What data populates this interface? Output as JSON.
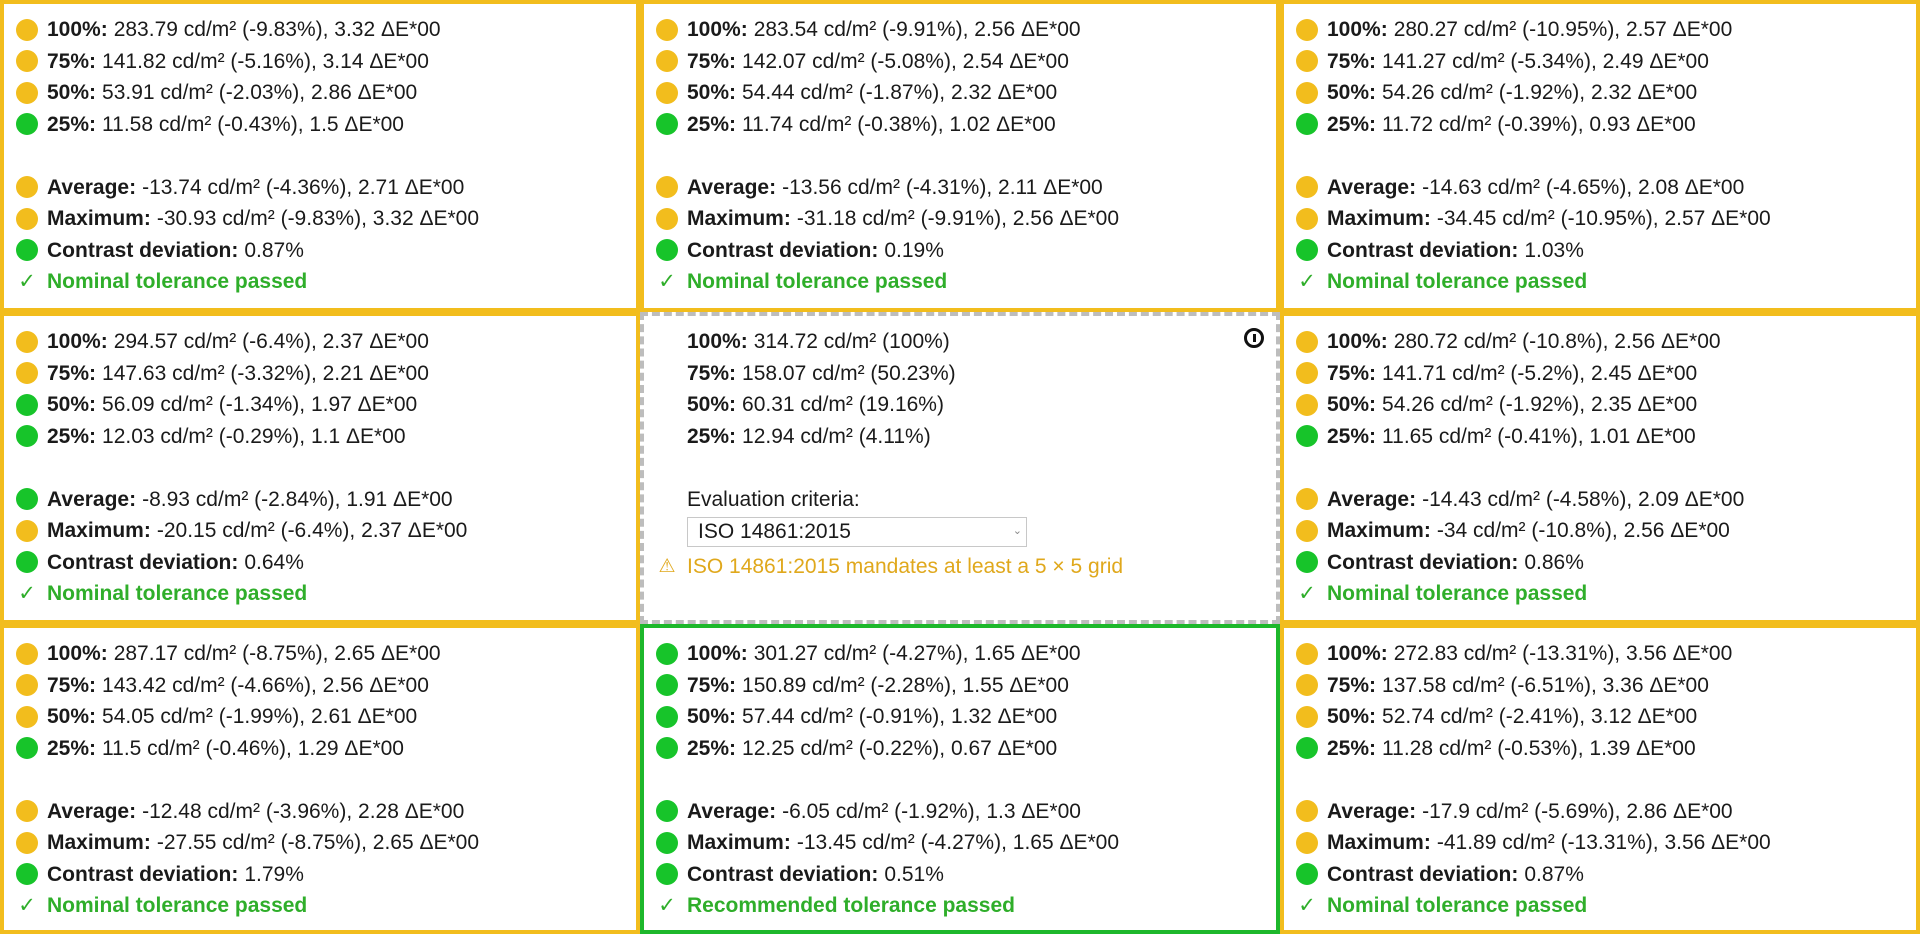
{
  "cells": [
    {
      "rows": [
        {
          "label": "100%:",
          "value": "283.79 cd/m² (-9.83%), 3.32 ΔE*00",
          "status": "yellow"
        },
        {
          "label": "75%:",
          "value": "141.82 cd/m² (-5.16%), 3.14 ΔE*00",
          "status": "yellow"
        },
        {
          "label": "50%:",
          "value": "53.91 cd/m² (-2.03%), 2.86 ΔE*00",
          "status": "yellow"
        },
        {
          "label": "25%:",
          "value": "11.58 cd/m² (-0.43%), 1.5 ΔE*00",
          "status": "green"
        }
      ],
      "summary": [
        {
          "label": "Average:",
          "value": "-13.74 cd/m² (-4.36%), 2.71 ΔE*00",
          "status": "yellow"
        },
        {
          "label": "Maximum:",
          "value": "-30.93 cd/m² (-9.83%), 3.32 ΔE*00",
          "status": "yellow"
        },
        {
          "label": "Contrast deviation:",
          "value": "0.87%",
          "status": "green"
        }
      ],
      "result": "Nominal tolerance passed"
    },
    {
      "rows": [
        {
          "label": "100%:",
          "value": "283.54 cd/m² (-9.91%), 2.56 ΔE*00",
          "status": "yellow"
        },
        {
          "label": "75%:",
          "value": "142.07 cd/m² (-5.08%), 2.54 ΔE*00",
          "status": "yellow"
        },
        {
          "label": "50%:",
          "value": "54.44 cd/m² (-1.87%), 2.32 ΔE*00",
          "status": "yellow"
        },
        {
          "label": "25%:",
          "value": "11.74 cd/m² (-0.38%), 1.02 ΔE*00",
          "status": "green"
        }
      ],
      "summary": [
        {
          "label": "Average:",
          "value": "-13.56 cd/m² (-4.31%), 2.11 ΔE*00",
          "status": "yellow"
        },
        {
          "label": "Maximum:",
          "value": "-31.18 cd/m² (-9.91%), 2.56 ΔE*00",
          "status": "yellow"
        },
        {
          "label": "Contrast deviation:",
          "value": "0.19%",
          "status": "green"
        }
      ],
      "result": "Nominal tolerance passed"
    },
    {
      "rows": [
        {
          "label": "100%:",
          "value": "280.27 cd/m² (-10.95%), 2.57 ΔE*00",
          "status": "yellow"
        },
        {
          "label": "75%:",
          "value": "141.27 cd/m² (-5.34%), 2.49 ΔE*00",
          "status": "yellow"
        },
        {
          "label": "50%:",
          "value": "54.26 cd/m² (-1.92%), 2.32 ΔE*00",
          "status": "yellow"
        },
        {
          "label": "25%:",
          "value": "11.72 cd/m² (-0.39%), 0.93 ΔE*00",
          "status": "green"
        }
      ],
      "summary": [
        {
          "label": "Average:",
          "value": "-14.63 cd/m² (-4.65%), 2.08 ΔE*00",
          "status": "yellow"
        },
        {
          "label": "Maximum:",
          "value": "-34.45 cd/m² (-10.95%), 2.57 ΔE*00",
          "status": "yellow"
        },
        {
          "label": "Contrast deviation:",
          "value": "1.03%",
          "status": "green"
        }
      ],
      "result": "Nominal tolerance passed"
    },
    {
      "rows": [
        {
          "label": "100%:",
          "value": "294.57 cd/m² (-6.4%), 2.37 ΔE*00",
          "status": "yellow"
        },
        {
          "label": "75%:",
          "value": "147.63 cd/m² (-3.32%), 2.21 ΔE*00",
          "status": "yellow"
        },
        {
          "label": "50%:",
          "value": "56.09 cd/m² (-1.34%), 1.97 ΔE*00",
          "status": "green"
        },
        {
          "label": "25%:",
          "value": "12.03 cd/m² (-0.29%), 1.1 ΔE*00",
          "status": "green"
        }
      ],
      "summary": [
        {
          "label": "Average:",
          "value": "-8.93 cd/m² (-2.84%), 1.91 ΔE*00",
          "status": "green"
        },
        {
          "label": "Maximum:",
          "value": "-20.15 cd/m² (-6.4%), 2.37 ΔE*00",
          "status": "yellow"
        },
        {
          "label": "Contrast deviation:",
          "value": "0.64%",
          "status": "green"
        }
      ],
      "result": "Nominal tolerance passed"
    },
    {
      "reference": true,
      "rows": [
        {
          "label": "100%:",
          "value": "314.72 cd/m² (100%)"
        },
        {
          "label": "75%:",
          "value": "158.07 cd/m² (50.23%)"
        },
        {
          "label": "50%:",
          "value": "60.31 cd/m² (19.16%)"
        },
        {
          "label": "25%:",
          "value": "12.94 cd/m² (4.11%)"
        }
      ],
      "criteria_label": "Evaluation criteria:",
      "criteria_value": "ISO 14861:2015",
      "warning": "ISO 14861:2015 mandates at least a 5 × 5 grid"
    },
    {
      "rows": [
        {
          "label": "100%:",
          "value": "280.72 cd/m² (-10.8%), 2.56 ΔE*00",
          "status": "yellow"
        },
        {
          "label": "75%:",
          "value": "141.71 cd/m² (-5.2%), 2.45 ΔE*00",
          "status": "yellow"
        },
        {
          "label": "50%:",
          "value": "54.26 cd/m² (-1.92%), 2.35 ΔE*00",
          "status": "yellow"
        },
        {
          "label": "25%:",
          "value": "11.65 cd/m² (-0.41%), 1.01 ΔE*00",
          "status": "green"
        }
      ],
      "summary": [
        {
          "label": "Average:",
          "value": "-14.43 cd/m² (-4.58%), 2.09 ΔE*00",
          "status": "yellow"
        },
        {
          "label": "Maximum:",
          "value": "-34 cd/m² (-10.8%), 2.56 ΔE*00",
          "status": "yellow"
        },
        {
          "label": "Contrast deviation:",
          "value": "0.86%",
          "status": "green"
        }
      ],
      "result": "Nominal tolerance passed"
    },
    {
      "rows": [
        {
          "label": "100%:",
          "value": "287.17 cd/m² (-8.75%), 2.65 ΔE*00",
          "status": "yellow"
        },
        {
          "label": "75%:",
          "value": "143.42 cd/m² (-4.66%), 2.56 ΔE*00",
          "status": "yellow"
        },
        {
          "label": "50%:",
          "value": "54.05 cd/m² (-1.99%), 2.61 ΔE*00",
          "status": "yellow"
        },
        {
          "label": "25%:",
          "value": "11.5 cd/m² (-0.46%), 1.29 ΔE*00",
          "status": "green"
        }
      ],
      "summary": [
        {
          "label": "Average:",
          "value": "-12.48 cd/m² (-3.96%), 2.28 ΔE*00",
          "status": "yellow"
        },
        {
          "label": "Maximum:",
          "value": "-27.55 cd/m² (-8.75%), 2.65 ΔE*00",
          "status": "yellow"
        },
        {
          "label": "Contrast deviation:",
          "value": "1.79%",
          "status": "green"
        }
      ],
      "result": "Nominal tolerance passed"
    },
    {
      "best": true,
      "rows": [
        {
          "label": "100%:",
          "value": "301.27 cd/m² (-4.27%), 1.65 ΔE*00",
          "status": "green"
        },
        {
          "label": "75%:",
          "value": "150.89 cd/m² (-2.28%), 1.55 ΔE*00",
          "status": "green"
        },
        {
          "label": "50%:",
          "value": "57.44 cd/m² (-0.91%), 1.32 ΔE*00",
          "status": "green"
        },
        {
          "label": "25%:",
          "value": "12.25 cd/m² (-0.22%), 0.67 ΔE*00",
          "status": "green"
        }
      ],
      "summary": [
        {
          "label": "Average:",
          "value": "-6.05 cd/m² (-1.92%), 1.3 ΔE*00",
          "status": "green"
        },
        {
          "label": "Maximum:",
          "value": "-13.45 cd/m² (-4.27%), 1.65 ΔE*00",
          "status": "green"
        },
        {
          "label": "Contrast deviation:",
          "value": "0.51%",
          "status": "green"
        }
      ],
      "result": "Recommended tolerance passed"
    },
    {
      "rows": [
        {
          "label": "100%:",
          "value": "272.83 cd/m² (-13.31%), 3.56 ΔE*00",
          "status": "yellow"
        },
        {
          "label": "75%:",
          "value": "137.58 cd/m² (-6.51%), 3.36 ΔE*00",
          "status": "yellow"
        },
        {
          "label": "50%:",
          "value": "52.74 cd/m² (-2.41%), 3.12 ΔE*00",
          "status": "yellow"
        },
        {
          "label": "25%:",
          "value": "11.28 cd/m² (-0.53%), 1.39 ΔE*00",
          "status": "green"
        }
      ],
      "summary": [
        {
          "label": "Average:",
          "value": "-17.9 cd/m² (-5.69%), 2.86 ΔE*00",
          "status": "yellow"
        },
        {
          "label": "Maximum:",
          "value": "-41.89 cd/m² (-13.31%), 3.56 ΔE*00",
          "status": "yellow"
        },
        {
          "label": "Contrast deviation:",
          "value": "0.87%",
          "status": "green"
        }
      ],
      "result": "Nominal tolerance passed"
    }
  ],
  "icons": {
    "pass": "✓",
    "warning": "⚠",
    "info": "info-icon"
  },
  "colors": {
    "warning_border": "#f2bd1d",
    "pass_border": "#1db82b",
    "status_yellow": "#f2bd1d",
    "status_green": "#17c42a",
    "pass_text": "#2fae2a",
    "warning_text": "#e0a81c"
  }
}
